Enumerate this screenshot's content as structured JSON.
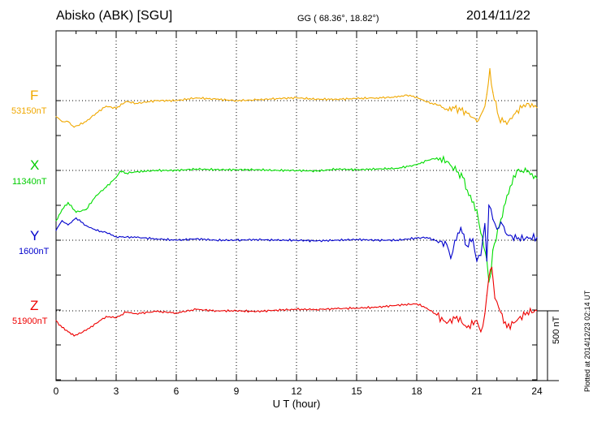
{
  "header": {
    "station": "Abisko (ABK)  [SGU]",
    "coords": "GG ( 68.36°,  18.82°)",
    "date": "2014/11/22"
  },
  "side_note": "Plotted at 2014/12/23 02:14 UT",
  "scale_bar": {
    "label": "500 nT",
    "value_nT": 500
  },
  "colors": {
    "F": "#f0a800",
    "X": "#00dd00",
    "Y": "#0000cc",
    "Z": "#ee0000"
  },
  "chart_data": {
    "type": "line",
    "title": "Abisko (ABK)  [SGU]",
    "xlabel": "U T (hour)",
    "xlim": [
      0,
      24
    ],
    "xticks": [
      "0",
      "3",
      "6",
      "9",
      "12",
      "15",
      "18",
      "21",
      "24"
    ],
    "grid": true,
    "series": [
      {
        "name": "F",
        "baseline_label": "53150nT",
        "x": [
          0,
          0.3,
          0.6,
          0.9,
          1.5,
          2,
          2.5,
          3,
          3.5,
          4,
          5,
          6,
          7,
          8,
          9,
          10,
          11,
          12,
          13,
          14,
          15,
          16,
          17,
          17.5,
          18,
          18.5,
          19,
          19.5,
          19.8,
          20.2,
          20.6,
          21,
          21.3,
          21.5,
          21.65,
          21.8,
          22.1,
          22.5,
          23,
          23.5,
          24
        ],
        "values": [
          -115,
          -150,
          -150,
          -190,
          -150,
          -90,
          -40,
          -55,
          -5,
          -20,
          0,
          0,
          20,
          10,
          0,
          5,
          15,
          20,
          10,
          10,
          15,
          20,
          25,
          40,
          25,
          -10,
          -30,
          -60,
          -45,
          -70,
          -90,
          -150,
          -75,
          45,
          230,
          60,
          -120,
          -170,
          -70,
          -20,
          -50
        ]
      },
      {
        "name": "X",
        "baseline_label": "11340nT",
        "x": [
          0,
          0.3,
          0.6,
          1,
          1.5,
          2,
          2.5,
          3,
          3.2,
          3.5,
          4,
          5,
          6,
          7,
          8,
          9,
          10,
          11,
          12,
          13,
          14,
          15,
          16,
          17,
          18,
          18.5,
          19,
          19.5,
          20,
          20.3,
          20.6,
          21,
          21.2,
          21.5,
          21.6,
          21.7,
          21.8,
          22.2,
          22.5,
          23,
          23.5,
          24
        ],
        "values": [
          -360,
          -280,
          -230,
          -300,
          -280,
          -180,
          -120,
          -50,
          -5,
          -20,
          -10,
          0,
          0,
          10,
          5,
          5,
          5,
          0,
          0,
          -5,
          10,
          5,
          10,
          15,
          40,
          70,
          90,
          65,
          -10,
          -50,
          -180,
          -280,
          -450,
          -640,
          -800,
          -740,
          -570,
          -350,
          -180,
          0,
          -10,
          -55
        ]
      },
      {
        "name": "Y",
        "baseline_label": "1600nT",
        "x": [
          0,
          0.3,
          0.6,
          1,
          1.5,
          2,
          2.5,
          3,
          4,
          5,
          6,
          7,
          8,
          9,
          10,
          11,
          12,
          13,
          14,
          15,
          16,
          17,
          18,
          18.5,
          19,
          19.5,
          19.7,
          19.9,
          20.2,
          20.5,
          20.8,
          21,
          21.2,
          21.4,
          21.5,
          21.6,
          21.8,
          22,
          22.2,
          22.5,
          23,
          24
        ],
        "values": [
          70,
          140,
          110,
          160,
          105,
          70,
          55,
          25,
          20,
          10,
          0,
          10,
          0,
          0,
          5,
          0,
          0,
          -5,
          0,
          5,
          0,
          0,
          15,
          20,
          -5,
          -30,
          -130,
          0,
          90,
          -40,
          10,
          -150,
          -110,
          120,
          -150,
          250,
          150,
          80,
          130,
          40,
          10,
          20
        ]
      },
      {
        "name": "Z",
        "baseline_label": "51900nT",
        "x": [
          0,
          0.3,
          0.6,
          0.9,
          1.5,
          2,
          2.5,
          3,
          3.5,
          4,
          5,
          6,
          7,
          8,
          9,
          10,
          11,
          12,
          13,
          14,
          15,
          16,
          17,
          18,
          18.5,
          19,
          19.5,
          20,
          20.5,
          21,
          21.2,
          21.4,
          21.5,
          21.6,
          21.75,
          21.9,
          22.1,
          22.5,
          23,
          23.5,
          24
        ],
        "values": [
          -70,
          -120,
          -150,
          -180,
          -140,
          -90,
          -40,
          -50,
          -10,
          -20,
          -5,
          -15,
          10,
          0,
          0,
          -5,
          5,
          10,
          10,
          15,
          20,
          25,
          40,
          50,
          20,
          -30,
          -90,
          -40,
          -120,
          -70,
          -150,
          -20,
          110,
          240,
          310,
          90,
          20,
          -120,
          -70,
          -10,
          0
        ]
      }
    ]
  }
}
